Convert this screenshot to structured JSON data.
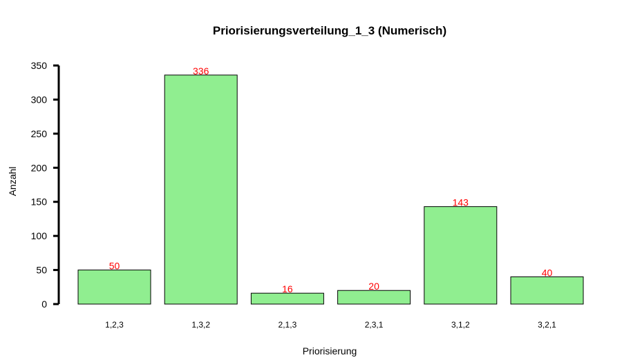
{
  "chart_data": {
    "type": "bar",
    "title": "Priorisierungsverteilung_1_3 (Numerisch)",
    "xlabel": "Priorisierung",
    "ylabel": "Anzahl",
    "categories": [
      "1,2,3",
      "1,3,2",
      "2,1,3",
      "2,3,1",
      "3,1,2",
      "3,2,1"
    ],
    "values": [
      50,
      336,
      16,
      20,
      143,
      40
    ],
    "ylim": [
      0,
      350
    ],
    "yticks": [
      "0",
      "50",
      "100",
      "150",
      "200",
      "250",
      "300",
      "350"
    ],
    "grid": false,
    "bar_color": "#90EE90",
    "bar_outline_color": "#000000",
    "label_color": "#FF0000"
  }
}
